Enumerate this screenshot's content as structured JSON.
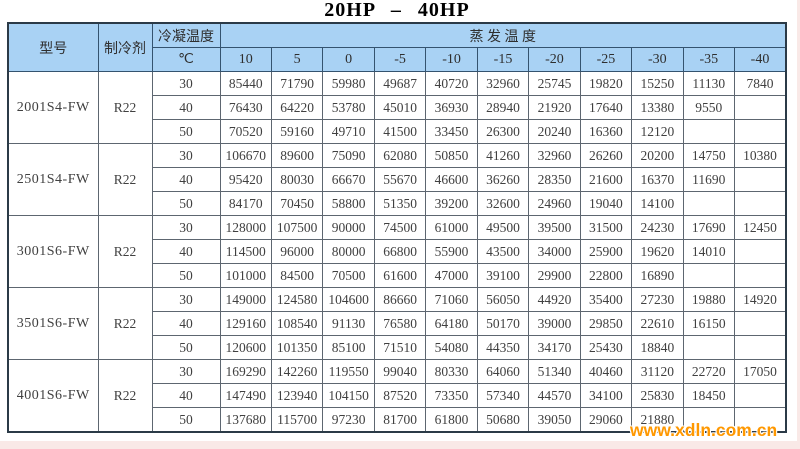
{
  "title": "20HP – 40HP",
  "watermark": "www.xdln.com.cn",
  "colors": {
    "header_bg": "#a9d2f4",
    "outer_border": "#2b3a47",
    "watermark_orange": "#ff9800",
    "page_margin_pink": "#f9e9e7"
  },
  "table": {
    "headers": {
      "model": "型号",
      "refrigerant": "制冷剂",
      "condensing": "冷凝温度",
      "condensing_unit": "℃",
      "evaporating": "蒸 发 温 度"
    },
    "evap_temps": [
      "10",
      "5",
      "0",
      "-5",
      "-10",
      "-15",
      "-20",
      "-25",
      "-30",
      "-35",
      "-40"
    ],
    "groups": [
      {
        "model": "2001S4-FW",
        "refrigerant": "R22",
        "rows": [
          {
            "cond": "30",
            "values": [
              "85440",
              "71790",
              "59980",
              "49687",
              "40720",
              "32960",
              "25745",
              "19820",
              "15250",
              "11130",
              "7840"
            ]
          },
          {
            "cond": "40",
            "values": [
              "76430",
              "64220",
              "53780",
              "45010",
              "36930",
              "28940",
              "21920",
              "17640",
              "13380",
              "9550",
              ""
            ]
          },
          {
            "cond": "50",
            "values": [
              "70520",
              "59160",
              "49710",
              "41500",
              "33450",
              "26300",
              "20240",
              "16360",
              "12120",
              "",
              ""
            ]
          }
        ]
      },
      {
        "model": "2501S4-FW",
        "refrigerant": "R22",
        "rows": [
          {
            "cond": "30",
            "values": [
              "106670",
              "89600",
              "75090",
              "62080",
              "50850",
              "41260",
              "32960",
              "26260",
              "20200",
              "14750",
              "10380"
            ]
          },
          {
            "cond": "40",
            "values": [
              "95420",
              "80030",
              "66670",
              "55670",
              "46600",
              "36260",
              "28350",
              "21600",
              "16370",
              "11690",
              ""
            ]
          },
          {
            "cond": "50",
            "values": [
              "84170",
              "70450",
              "58800",
              "51350",
              "39200",
              "32600",
              "24960",
              "19040",
              "14100",
              "",
              ""
            ]
          }
        ]
      },
      {
        "model": "3001S6-FW",
        "refrigerant": "R22",
        "rows": [
          {
            "cond": "30",
            "values": [
              "128000",
              "107500",
              "90000",
              "74500",
              "61000",
              "49500",
              "39500",
              "31500",
              "24230",
              "17690",
              "12450"
            ]
          },
          {
            "cond": "40",
            "values": [
              "114500",
              "96000",
              "80000",
              "66800",
              "55900",
              "43500",
              "34000",
              "25900",
              "19620",
              "14010",
              ""
            ]
          },
          {
            "cond": "50",
            "values": [
              "101000",
              "84500",
              "70500",
              "61600",
              "47000",
              "39100",
              "29900",
              "22800",
              "16890",
              "",
              ""
            ]
          }
        ]
      },
      {
        "model": "3501S6-FW",
        "refrigerant": "R22",
        "rows": [
          {
            "cond": "30",
            "values": [
              "149000",
              "124580",
              "104600",
              "86660",
              "71060",
              "56050",
              "44920",
              "35400",
              "27230",
              "19880",
              "14920"
            ]
          },
          {
            "cond": "40",
            "values": [
              "129160",
              "108540",
              "91130",
              "76580",
              "64180",
              "50170",
              "39000",
              "29850",
              "22610",
              "16150",
              ""
            ]
          },
          {
            "cond": "50",
            "values": [
              "120600",
              "101350",
              "85100",
              "71510",
              "54080",
              "44350",
              "34170",
              "25430",
              "18840",
              "",
              ""
            ]
          }
        ]
      },
      {
        "model": "4001S6-FW",
        "refrigerant": "R22",
        "rows": [
          {
            "cond": "30",
            "values": [
              "169290",
              "142260",
              "119550",
              "99040",
              "80330",
              "64060",
              "51340",
              "40460",
              "31120",
              "22720",
              "17050"
            ]
          },
          {
            "cond": "40",
            "values": [
              "147490",
              "123940",
              "104150",
              "87520",
              "73350",
              "57340",
              "44570",
              "34100",
              "25830",
              "18450",
              ""
            ]
          },
          {
            "cond": "50",
            "values": [
              "137680",
              "115700",
              "97230",
              "81700",
              "61800",
              "50680",
              "39050",
              "29060",
              "21880",
              "",
              ""
            ]
          }
        ]
      }
    ]
  }
}
